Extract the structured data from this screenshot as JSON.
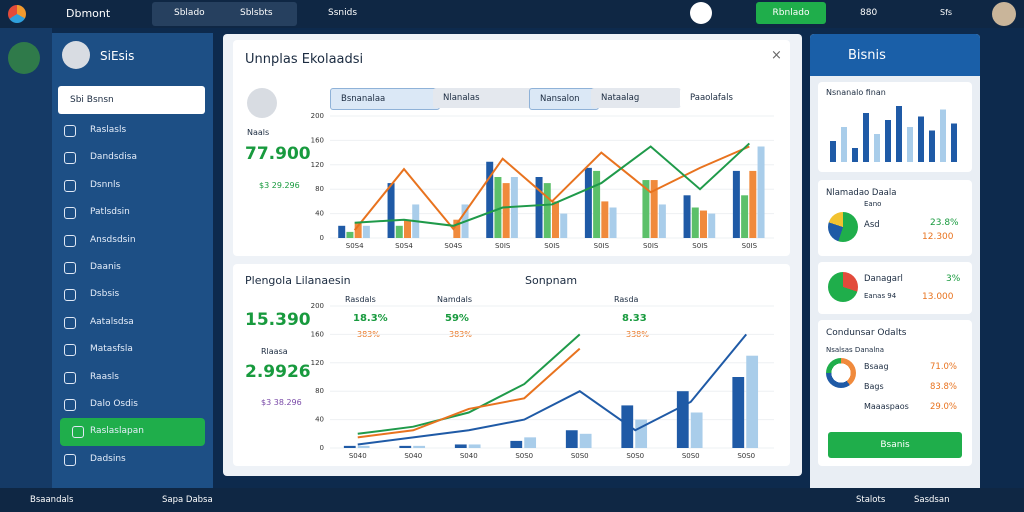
{
  "topbar": {
    "brand": "Dbmont",
    "tabs": [
      "Sblado",
      "Sblsbts"
    ],
    "link": "Ssnids",
    "button": "Rbnlado",
    "counter": "880",
    "user_short": "Sfs"
  },
  "sidebar": {
    "title": "SiEsis",
    "search": "Sbi Bsnsn",
    "items": [
      "Raslasls",
      "Dandsdisa",
      "Dsnnls",
      "Patlsdsin",
      "Ansdsdsin",
      "Daanis",
      "Dsbsis",
      "Aatalsdsa",
      "Matasfsla",
      "Raasls",
      "Dalo Osdis",
      "Raslaslapan",
      "Dadsins"
    ],
    "active": 11
  },
  "top_card": {
    "title": "Unnplas Ekolaadsi",
    "filters": [
      "Bsnanalaa",
      "Nlanalas",
      "Nansalon",
      "Nataalag",
      "Paaolafals"
    ],
    "person": "Naals",
    "big_value": "77.900",
    "sub_value": "$3 29.296",
    "chart": {
      "type": "bar-line",
      "categories": [
        "S0S4",
        "S0S4",
        "S04S",
        "S0IS",
        "S0IS",
        "S0IS",
        "S0IS",
        "S0IS",
        "S0IS"
      ],
      "ylim": [
        0,
        200
      ],
      "yticks": [
        0,
        40,
        80,
        120,
        160,
        200
      ],
      "series": [
        {
          "name": "navy",
          "kind": "bar",
          "color": "#1f5aa6",
          "values": [
            20,
            90,
            0,
            125,
            100,
            115,
            0,
            70,
            110
          ]
        },
        {
          "name": "green",
          "kind": "bar",
          "color": "#5cc06a",
          "values": [
            10,
            20,
            0,
            100,
            90,
            110,
            95,
            50,
            70
          ]
        },
        {
          "name": "orange",
          "kind": "bar",
          "color": "#f08a3c",
          "values": [
            25,
            30,
            30,
            90,
            60,
            60,
            95,
            45,
            110
          ]
        },
        {
          "name": "light",
          "kind": "bar",
          "color": "#a9cdea",
          "values": [
            20,
            55,
            55,
            100,
            40,
            50,
            55,
            40,
            150
          ]
        },
        {
          "name": "orange-line",
          "kind": "line",
          "color": "#e8731f",
          "values": [
            13,
            113,
            15,
            130,
            60,
            140,
            75,
            115,
            150
          ]
        },
        {
          "name": "green-line",
          "kind": "line",
          "color": "#1f9a4a",
          "values": [
            25,
            30,
            20,
            50,
            55,
            90,
            150,
            80,
            155
          ]
        }
      ]
    }
  },
  "bottom_card": {
    "title": "Plengola Lilanaesin",
    "subtitle": "Sonpnam",
    "legend": [
      "Rasdals",
      "Namdals",
      "Rasda"
    ],
    "legend_values": [
      "18.3%",
      "59%",
      "8.33"
    ],
    "legend_sub": [
      "383%",
      "383%",
      "338%"
    ],
    "value1": "15.390",
    "label1": "Rlaasa",
    "value2": "2.9926",
    "sub2": "$3 38.296",
    "chart": {
      "type": "bar-line",
      "categories": [
        "S040",
        "S040",
        "S040",
        "S0S0",
        "S0S0",
        "S0S0",
        "S0S0",
        "S0S0"
      ],
      "ylim": [
        0,
        200
      ],
      "yticks": [
        0,
        40,
        80,
        120,
        160,
        200
      ],
      "series": [
        {
          "name": "navy",
          "kind": "bar",
          "color": "#1f5aa6",
          "values": [
            3,
            3,
            5,
            10,
            25,
            60,
            80,
            100
          ]
        },
        {
          "name": "light",
          "kind": "bar",
          "color": "#a9cdea",
          "values": [
            3,
            3,
            5,
            15,
            20,
            40,
            50,
            130
          ]
        },
        {
          "name": "green-line",
          "kind": "line",
          "color": "#1f9a4a",
          "values": [
            20,
            30,
            50,
            90,
            160,
            null,
            null,
            null
          ]
        },
        {
          "name": "orange-line",
          "kind": "line",
          "color": "#e8731f",
          "values": [
            15,
            25,
            55,
            70,
            140,
            null,
            null,
            null
          ]
        },
        {
          "name": "blue-line",
          "kind": "line",
          "color": "#1f5aa6",
          "values": [
            5,
            15,
            25,
            40,
            80,
            25,
            65,
            160
          ]
        }
      ]
    }
  },
  "right_panel": {
    "title": "Bisnis",
    "card1": {
      "title": "Nsnanalo finan",
      "values": [
        30,
        50,
        20,
        70,
        40,
        60,
        80,
        50,
        65,
        45,
        75,
        55
      ]
    },
    "card2": {
      "title": "Nlamadao Daala",
      "sub": "Eano",
      "label": "Asd",
      "pct": "23.8%",
      "amount": "12.300"
    },
    "card3": {
      "title": "Danagarl",
      "sub": "Eanas 94",
      "pct": "3%",
      "amount": "13.000"
    },
    "card4": {
      "title": "Condunsar Odalts",
      "sub": "Nsalsas Danalna",
      "rows": [
        [
          "Bsaag",
          "71.0%"
        ],
        [
          "Bags",
          "83.8%"
        ],
        [
          "Maaaspaos",
          "29.0%"
        ]
      ],
      "button": "Bsanis"
    }
  },
  "bottombar": {
    "items": [
      "Bsaandals",
      "Sapa Dabsa",
      "Stalots",
      "Sasdsan"
    ]
  }
}
